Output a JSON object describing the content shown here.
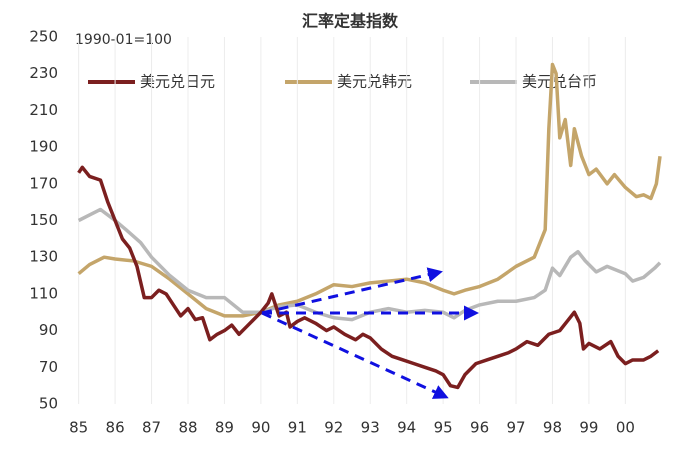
{
  "chart_data": {
    "type": "line",
    "title": "汇率定基指数",
    "annotation": "1990-01=100",
    "xlim": [
      1984.9,
      2000.95
    ],
    "ylim": [
      50,
      250
    ],
    "xticks": [
      {
        "value": 1985,
        "label": "85"
      },
      {
        "value": 1986,
        "label": "86"
      },
      {
        "value": 1987,
        "label": "87"
      },
      {
        "value": 1988,
        "label": "88"
      },
      {
        "value": 1989,
        "label": "89"
      },
      {
        "value": 1990,
        "label": "90"
      },
      {
        "value": 1991,
        "label": "91"
      },
      {
        "value": 1992,
        "label": "92"
      },
      {
        "value": 1993,
        "label": "93"
      },
      {
        "value": 1994,
        "label": "94"
      },
      {
        "value": 1995,
        "label": "95"
      },
      {
        "value": 1996,
        "label": "96"
      },
      {
        "value": 1997,
        "label": "97"
      },
      {
        "value": 1998,
        "label": "98"
      },
      {
        "value": 1999,
        "label": "99"
      },
      {
        "value": 2000,
        "label": "00"
      }
    ],
    "yticks": [
      50,
      70,
      90,
      110,
      130,
      150,
      170,
      190,
      210,
      230,
      250
    ],
    "grid": true,
    "series": [
      {
        "name": "美元兑日元",
        "color": "#7b1f1f",
        "x": [
          1985.0,
          1985.1,
          1985.3,
          1985.6,
          1985.8,
          1986.0,
          1986.2,
          1986.4,
          1986.6,
          1986.8,
          1987.0,
          1987.2,
          1987.4,
          1987.6,
          1987.8,
          1988.0,
          1988.2,
          1988.4,
          1988.6,
          1988.8,
          1989.0,
          1989.2,
          1989.4,
          1989.6,
          1989.8,
          1990.0,
          1990.2,
          1990.3,
          1990.5,
          1990.7,
          1990.8,
          1991.0,
          1991.2,
          1991.5,
          1991.8,
          1992.0,
          1992.3,
          1992.6,
          1992.8,
          1993.0,
          1993.3,
          1993.6,
          1993.9,
          1994.2,
          1994.5,
          1994.8,
          1995.0,
          1995.2,
          1995.4,
          1995.6,
          1995.9,
          1996.2,
          1996.5,
          1996.8,
          1997.0,
          1997.3,
          1997.6,
          1997.9,
          1998.2,
          1998.4,
          1998.6,
          1998.75,
          1998.85,
          1999.0,
          1999.3,
          1999.6,
          1999.8,
          2000.0,
          2000.2,
          2000.5,
          2000.7,
          2000.9
        ],
        "values": [
          176,
          179,
          174,
          172,
          160,
          150,
          140,
          135,
          125,
          108,
          108,
          112,
          110,
          104,
          98,
          102,
          96,
          97,
          85,
          88,
          90,
          93,
          88,
          92,
          96,
          100,
          105,
          110,
          98,
          100,
          92,
          95,
          97,
          94,
          90,
          92,
          88,
          85,
          88,
          86,
          80,
          76,
          74,
          72,
          70,
          68,
          66,
          60,
          59,
          66,
          72,
          74,
          76,
          78,
          80,
          84,
          82,
          88,
          90,
          95,
          100,
          94,
          80,
          83,
          80,
          84,
          76,
          72,
          74,
          74,
          76,
          79
        ]
      },
      {
        "name": "美元兑韩元",
        "color": "#c4a56a",
        "x": [
          1985.0,
          1985.3,
          1985.7,
          1986.0,
          1986.5,
          1987.0,
          1987.5,
          1988.0,
          1988.5,
          1989.0,
          1989.5,
          1990.0,
          1990.5,
          1991.0,
          1991.5,
          1992.0,
          1992.5,
          1993.0,
          1993.5,
          1994.0,
          1994.5,
          1995.0,
          1995.3,
          1995.6,
          1996.0,
          1996.5,
          1997.0,
          1997.5,
          1997.8,
          1997.9,
          1998.0,
          1998.1,
          1998.2,
          1998.35,
          1998.5,
          1998.6,
          1998.8,
          1999.0,
          1999.2,
          1999.5,
          1999.7,
          2000.0,
          2000.3,
          2000.5,
          2000.7,
          2000.85,
          2000.95
        ],
        "values": [
          121,
          126,
          130,
          129,
          128,
          125,
          118,
          110,
          102,
          98,
          98,
          100,
          104,
          106,
          110,
          115,
          114,
          116,
          117,
          118,
          116,
          112,
          110,
          112,
          114,
          118,
          125,
          130,
          145,
          200,
          235,
          230,
          195,
          205,
          180,
          200,
          185,
          175,
          178,
          170,
          175,
          168,
          163,
          164,
          162,
          170,
          185
        ]
      },
      {
        "name": "美元兑台币",
        "color": "#b8b8b8",
        "x": [
          1985.0,
          1985.3,
          1985.6,
          1986.0,
          1986.3,
          1986.7,
          1987.0,
          1987.5,
          1988.0,
          1988.5,
          1989.0,
          1989.5,
          1990.0,
          1990.5,
          1991.0,
          1991.5,
          1992.0,
          1992.5,
          1993.0,
          1993.5,
          1994.0,
          1994.5,
          1995.0,
          1995.3,
          1995.6,
          1996.0,
          1996.5,
          1997.0,
          1997.5,
          1997.8,
          1998.0,
          1998.2,
          1998.5,
          1998.7,
          1998.9,
          1999.2,
          1999.5,
          2000.0,
          2000.2,
          2000.5,
          2000.8,
          2000.95
        ],
        "values": [
          150,
          153,
          156,
          150,
          145,
          138,
          130,
          120,
          112,
          108,
          108,
          100,
          100,
          103,
          104,
          100,
          97,
          96,
          100,
          102,
          100,
          101,
          100,
          97,
          101,
          104,
          106,
          106,
          108,
          112,
          124,
          120,
          130,
          133,
          128,
          122,
          125,
          121,
          117,
          119,
          124,
          127
        ]
      }
    ]
  }
}
